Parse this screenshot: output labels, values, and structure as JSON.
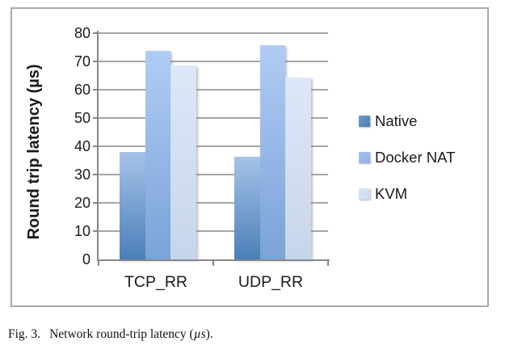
{
  "figure": {
    "caption": {
      "label": "Fig. 3.",
      "body": "Network round-trip latency (",
      "unit": "µs",
      "close": ")."
    }
  },
  "chart_data": {
    "type": "bar",
    "title": "",
    "categories": [
      "TCP_RR",
      "UDP_RR"
    ],
    "series": [
      {
        "name": "Native",
        "values": [
          38.0,
          36.4
        ],
        "color_top": "#a6c3e8",
        "color_bottom": "#4a7fb8",
        "legend_color_top": "#6d9cd1",
        "legend_color_bottom": "#4d7cb4"
      },
      {
        "name": "Docker NAT",
        "values": [
          73.6,
          75.6
        ],
        "color_top": "#b0ccf4",
        "color_bottom": "#7aa3d8",
        "legend_color_top": "#a5c4ee",
        "legend_color_bottom": "#8db0e0"
      },
      {
        "name": "KVM",
        "values": [
          68.5,
          64.3
        ],
        "color_top": "#dde7f8",
        "color_bottom": "#c7d5ec",
        "legend_color_top": "#dce6f6",
        "legend_color_bottom": "#cbd8ee"
      }
    ],
    "xlabel": "",
    "ylabel": "Round trip latency (µs)",
    "ylim": [
      0,
      80
    ],
    "yticks": [
      0,
      10,
      20,
      30,
      40,
      50,
      60,
      70,
      80
    ],
    "grid": true,
    "legend_position": "right",
    "axis_color": "#878787",
    "gridline_color": "#a6a6a6",
    "text_color": "#1a1a1a"
  }
}
